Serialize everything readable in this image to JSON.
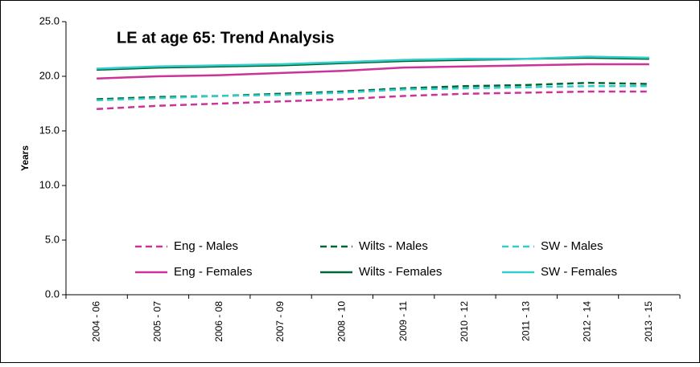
{
  "chart_data": {
    "type": "line",
    "title": "LE at age 65: Trend Analysis",
    "y_label": "Years",
    "categories": [
      "2004 - 06",
      "2005 - 07",
      "2006 - 08",
      "2007 - 09",
      "2008 - 10",
      "2009 - 11",
      "2010 - 12",
      "2011 - 13",
      "2012 - 14",
      "2013 - 15"
    ],
    "series": [
      {
        "name": "Eng - Males",
        "color": "#cc3399",
        "dashed": true,
        "values": [
          17.0,
          17.3,
          17.5,
          17.7,
          17.9,
          18.2,
          18.4,
          18.5,
          18.6,
          18.6
        ]
      },
      {
        "name": "Wilts - Males",
        "color": "#006633",
        "dashed": true,
        "values": [
          17.9,
          18.1,
          18.2,
          18.4,
          18.6,
          18.9,
          19.1,
          19.2,
          19.4,
          19.3
        ]
      },
      {
        "name": "SW - Males",
        "color": "#33cccc",
        "dashed": true,
        "values": [
          17.8,
          18.0,
          18.2,
          18.3,
          18.5,
          18.8,
          18.9,
          19.0,
          19.1,
          19.1
        ]
      },
      {
        "name": "Eng - Females",
        "color": "#cc3399",
        "dashed": false,
        "values": [
          19.8,
          20.0,
          20.1,
          20.3,
          20.5,
          20.8,
          20.9,
          21.0,
          21.1,
          21.1
        ]
      },
      {
        "name": "Wilts - Females",
        "color": "#006633",
        "dashed": false,
        "values": [
          20.6,
          20.8,
          20.9,
          21.0,
          21.2,
          21.4,
          21.5,
          21.6,
          21.7,
          21.6
        ]
      },
      {
        "name": "SW - Females",
        "color": "#33cccc",
        "dashed": false,
        "values": [
          20.7,
          20.9,
          21.0,
          21.1,
          21.3,
          21.5,
          21.6,
          21.6,
          21.8,
          21.7
        ]
      }
    ],
    "ylim": [
      0,
      25
    ],
    "yticks": [
      {
        "value": 0,
        "label": "0.0"
      },
      {
        "value": 5,
        "label": "5.0"
      },
      {
        "value": 10,
        "label": "10.0"
      },
      {
        "value": 15,
        "label": "15.0"
      },
      {
        "value": 20,
        "label": "20.0"
      },
      {
        "value": 25,
        "label": "25.0"
      }
    ],
    "grid": false,
    "legend": "bottom"
  }
}
